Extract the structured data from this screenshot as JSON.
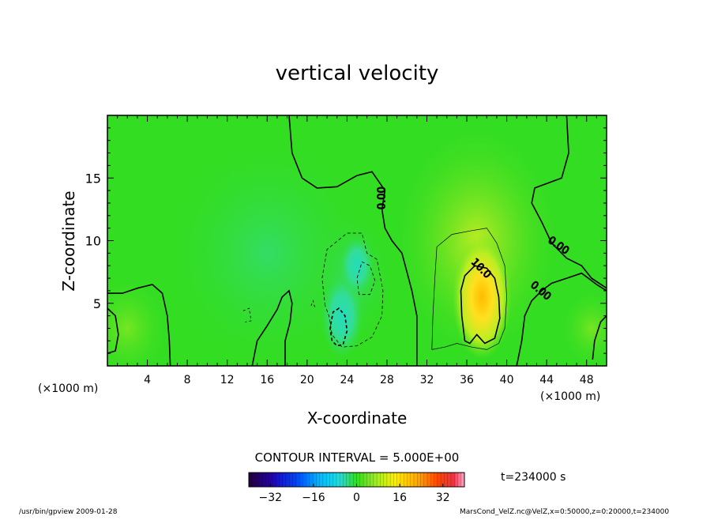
{
  "chart_data": {
    "type": "heatmap",
    "title": "vertical velocity",
    "xlabel": "X-coordinate",
    "ylabel": "Z-coordinate",
    "x_unit": "(×1000 m)",
    "y_unit": "(×1000 m)",
    "xlim": [
      0,
      50
    ],
    "ylim": [
      0,
      20
    ],
    "x_ticks": [
      4,
      8,
      12,
      16,
      20,
      24,
      28,
      32,
      36,
      40,
      44,
      48
    ],
    "y_ticks": [
      5,
      10,
      15
    ],
    "contour_interval_label": "CONTOUR INTERVAL = 5.000E+00",
    "time_label": "t=234000 s",
    "colorbar": {
      "min": -40,
      "max": 40,
      "ticks": [
        -32,
        -16,
        0,
        16,
        32
      ]
    },
    "contour_labels": [
      {
        "text": "0.00",
        "x": 27.8,
        "y": 13.4,
        "angle": -90
      },
      {
        "text": "10.0",
        "x": 37.2,
        "y": 7.6,
        "angle": 45
      },
      {
        "text": "0.00",
        "x": 45.0,
        "y": 9.4,
        "angle": 35
      },
      {
        "text": "0.00",
        "x": 43.2,
        "y": 5.8,
        "angle": 40
      }
    ],
    "features": [
      {
        "kind": "updraft",
        "x": 37.3,
        "y": 5.4,
        "peak": 20
      },
      {
        "kind": "downdraft",
        "x": 23.3,
        "y": 3.0,
        "peak": -12
      },
      {
        "kind": "downdraft",
        "x": 24.8,
        "y": 7.0,
        "peak": -6
      }
    ]
  },
  "footer": {
    "left": "/usr/bin/gpview  2009-01-28",
    "right": "MarsCond_VelZ.nc@VelZ,x=0:50000,z=0:20000,t=234000"
  },
  "colors": {
    "background_field": "#33dd22",
    "updraft_core": "#ffcc00",
    "downdraft_core": "#33ddbb"
  }
}
